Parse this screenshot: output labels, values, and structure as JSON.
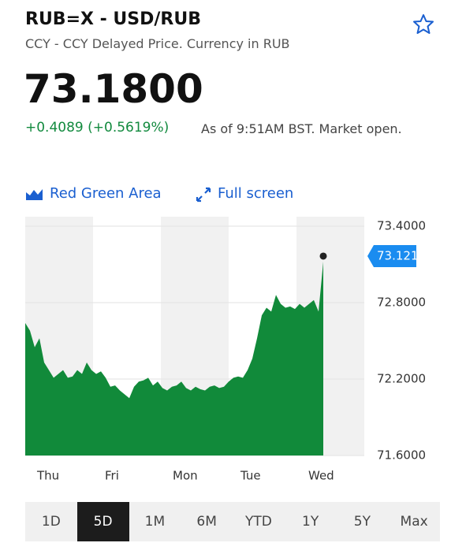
{
  "header": {
    "title": "RUB=X - USD/RUB",
    "subtitle": "CCY - CCY Delayed Price. Currency in RUB",
    "price": "73.1800",
    "change": "+0.4089 (+0.5619%)",
    "status": "As of 9:51AM BST. Market open."
  },
  "controls": {
    "chart_style": "Red Green Area",
    "full_screen": "Full screen"
  },
  "ranges": {
    "items": [
      "1D",
      "5D",
      "1M",
      "6M",
      "YTD",
      "1Y",
      "5Y",
      "Max"
    ],
    "selected": "5D"
  },
  "chart_data": {
    "type": "area",
    "color": "#118a3a",
    "day_labels": [
      "Thu",
      "Fri",
      "Mon",
      "Tue",
      "Wed"
    ],
    "values": [
      72.64,
      72.58,
      72.45,
      72.52,
      72.33,
      72.27,
      72.21,
      72.24,
      72.27,
      72.21,
      72.22,
      72.27,
      72.24,
      72.33,
      72.27,
      72.24,
      72.26,
      72.21,
      72.14,
      72.15,
      72.11,
      72.08,
      72.05,
      72.14,
      72.18,
      72.19,
      72.21,
      72.15,
      72.18,
      72.13,
      72.11,
      72.14,
      72.15,
      72.18,
      72.13,
      72.11,
      72.14,
      72.12,
      72.11,
      72.14,
      72.15,
      72.13,
      72.14,
      72.18,
      72.21,
      72.22,
      72.21,
      72.27,
      72.36,
      72.52,
      72.7,
      72.76,
      72.73,
      72.86,
      72.79,
      72.76,
      72.77,
      72.75,
      72.79,
      72.76,
      72.79,
      72.82,
      72.73,
      73.1218
    ],
    "ylim": [
      71.6,
      73.4
    ],
    "yticks": [
      {
        "value": 73.4,
        "label": "73.4000"
      },
      {
        "value": 72.8,
        "label": "72.8000"
      },
      {
        "value": 72.2,
        "label": "72.2000"
      },
      {
        "value": 71.6,
        "label": "71.6000"
      }
    ]
  }
}
